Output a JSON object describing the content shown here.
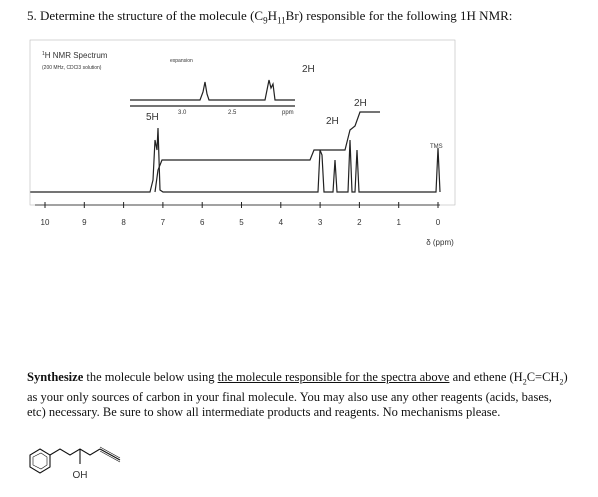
{
  "question": {
    "number": "5.",
    "before": "Determine the structure of the molecule (C",
    "sub1": "9",
    "mid": "H",
    "sub2": "11",
    "after": "Br) responsible for the following 1H NMR:"
  },
  "spectrum": {
    "title_sup": "1",
    "title": "H NMR Spectrum",
    "conditions": "(200 MHz, CDCl3 solution)",
    "expansion": "expansion",
    "inset_ticks": [
      "3.0",
      "2.5",
      "ppm"
    ],
    "integrations": [
      "5H",
      "2H",
      "2H",
      "2H"
    ],
    "tms": "TMS",
    "axis_labels": [
      "10",
      "9",
      "8",
      "7",
      "6",
      "5",
      "4",
      "3",
      "2",
      "1",
      "0"
    ],
    "axis_title": "δ (ppm)"
  },
  "task": {
    "bold": "Synthesize",
    "t1": " the molecule below using ",
    "link": "the molecule responsible for the spectra above",
    "t2": " and ethene (H",
    "s1": "2",
    "t3": "C=CH",
    "s2": "2",
    "t4": ") as your only sources of carbon in your final molecule.  You may also use any other reagents (acids, bases, etc) necessary.  Be sure to show all intermediate products and reagents.  No mechanisms please."
  },
  "molecule": {
    "label": "OH"
  }
}
